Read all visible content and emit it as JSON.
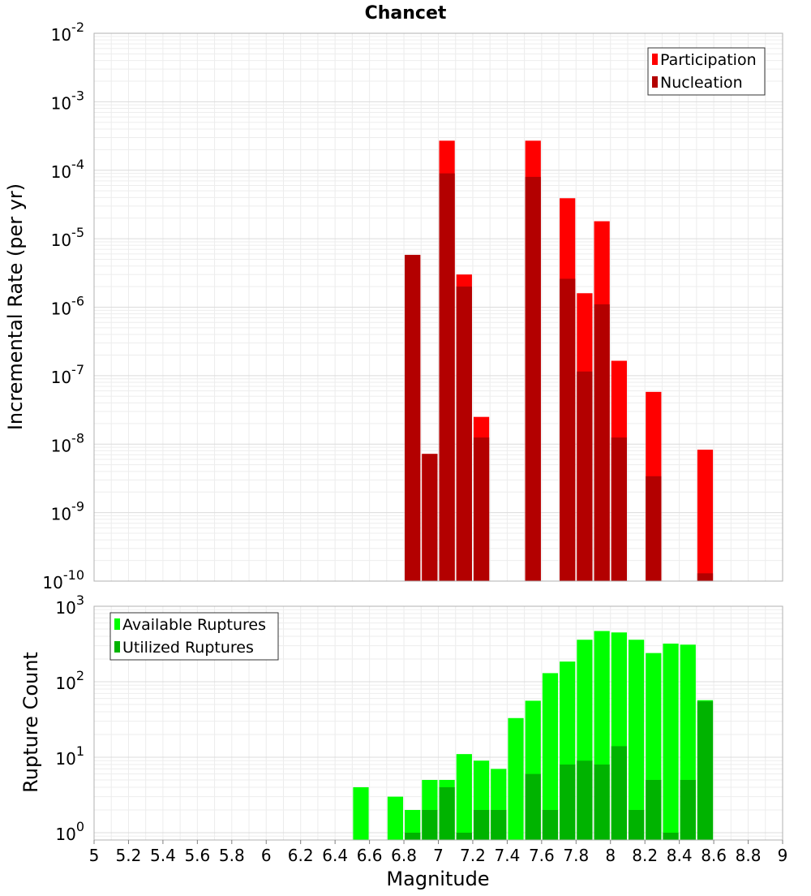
{
  "chart_data": [
    {
      "type": "bar",
      "title": "Chancet",
      "xlabel": "",
      "ylabel": "Incremental Rate (per yr)",
      "y_scale": "log",
      "ylim": [
        1e-10,
        0.01
      ],
      "xlim": [
        5,
        9
      ],
      "bar_width": 0.1,
      "grid": true,
      "legend_position": "top-right",
      "y_ticks": [
        {
          "base": "10",
          "exp": "-10",
          "value": 1e-10
        },
        {
          "base": "10",
          "exp": "-9",
          "value": 1e-09
        },
        {
          "base": "10",
          "exp": "-8",
          "value": 1e-08
        },
        {
          "base": "10",
          "exp": "-7",
          "value": 1e-07
        },
        {
          "base": "10",
          "exp": "-6",
          "value": 1e-06
        },
        {
          "base": "10",
          "exp": "-5",
          "value": 1e-05
        },
        {
          "base": "10",
          "exp": "-4",
          "value": 0.0001
        },
        {
          "base": "10",
          "exp": "-3",
          "value": 0.001
        },
        {
          "base": "10",
          "exp": "-2",
          "value": 0.01
        }
      ],
      "series": [
        {
          "name": "Participation",
          "color": "#ff0000",
          "points": [
            {
              "x": 6.85,
              "y": 5.8e-06
            },
            {
              "x": 6.95,
              "y": 7.2e-09
            },
            {
              "x": 7.05,
              "y": 0.00027
            },
            {
              "x": 7.15,
              "y": 3e-06
            },
            {
              "x": 7.25,
              "y": 2.5e-08
            },
            {
              "x": 7.55,
              "y": 0.00027
            },
            {
              "x": 7.75,
              "y": 3.9e-05
            },
            {
              "x": 7.85,
              "y": 1.6e-06
            },
            {
              "x": 7.95,
              "y": 1.8e-05
            },
            {
              "x": 8.05,
              "y": 1.65e-07
            },
            {
              "x": 8.25,
              "y": 5.8e-08
            },
            {
              "x": 8.55,
              "y": 8.3e-09
            }
          ]
        },
        {
          "name": "Nucleation",
          "color": "#b30000",
          "points": [
            {
              "x": 6.85,
              "y": 5.8e-06
            },
            {
              "x": 6.95,
              "y": 7.2e-09
            },
            {
              "x": 7.05,
              "y": 9e-05
            },
            {
              "x": 7.15,
              "y": 2e-06
            },
            {
              "x": 7.25,
              "y": 1.25e-08
            },
            {
              "x": 7.55,
              "y": 8e-05
            },
            {
              "x": 7.75,
              "y": 2.6e-06
            },
            {
              "x": 7.85,
              "y": 1.15e-07
            },
            {
              "x": 7.95,
              "y": 1.1e-06
            },
            {
              "x": 8.05,
              "y": 1.25e-08
            },
            {
              "x": 8.25,
              "y": 3.4e-09
            },
            {
              "x": 8.55,
              "y": 1.3e-10
            }
          ]
        }
      ]
    },
    {
      "type": "bar",
      "title": "",
      "xlabel": "Magnitude",
      "ylabel": "Rupture Count",
      "y_scale": "log",
      "ylim": [
        0.8,
        1000
      ],
      "xlim": [
        5,
        9
      ],
      "bar_width": 0.1,
      "grid": true,
      "legend_position": "top-left",
      "x_ticks": [
        "5",
        "5.2",
        "5.4",
        "5.6",
        "5.8",
        "6",
        "6.2",
        "6.4",
        "6.6",
        "6.8",
        "7",
        "7.2",
        "7.4",
        "7.6",
        "7.8",
        "8",
        "8.2",
        "8.4",
        "8.6",
        "8.8",
        "9"
      ],
      "y_ticks": [
        {
          "base": "10",
          "exp": "0",
          "value": 1
        },
        {
          "base": "10",
          "exp": "1",
          "value": 10
        },
        {
          "base": "10",
          "exp": "2",
          "value": 100
        },
        {
          "base": "10",
          "exp": "3",
          "value": 1000
        }
      ],
      "series": [
        {
          "name": "Available Ruptures",
          "color": "#00ff00",
          "points": [
            {
              "x": 6.55,
              "y": 4
            },
            {
              "x": 6.75,
              "y": 3
            },
            {
              "x": 6.85,
              "y": 2
            },
            {
              "x": 6.95,
              "y": 5
            },
            {
              "x": 7.05,
              "y": 5
            },
            {
              "x": 7.15,
              "y": 11
            },
            {
              "x": 7.25,
              "y": 9
            },
            {
              "x": 7.35,
              "y": 7
            },
            {
              "x": 7.45,
              "y": 33
            },
            {
              "x": 7.55,
              "y": 56
            },
            {
              "x": 7.65,
              "y": 130
            },
            {
              "x": 7.75,
              "y": 185
            },
            {
              "x": 7.85,
              "y": 360
            },
            {
              "x": 7.95,
              "y": 470
            },
            {
              "x": 8.05,
              "y": 450
            },
            {
              "x": 8.15,
              "y": 360
            },
            {
              "x": 8.25,
              "y": 240
            },
            {
              "x": 8.35,
              "y": 320
            },
            {
              "x": 8.45,
              "y": 310
            },
            {
              "x": 8.55,
              "y": 57
            }
          ]
        },
        {
          "name": "Utilized Ruptures",
          "color": "#00b300",
          "points": [
            {
              "x": 6.85,
              "y": 1
            },
            {
              "x": 6.95,
              "y": 2
            },
            {
              "x": 7.05,
              "y": 4
            },
            {
              "x": 7.15,
              "y": 1
            },
            {
              "x": 7.25,
              "y": 2
            },
            {
              "x": 7.35,
              "y": 2
            },
            {
              "x": 7.55,
              "y": 6
            },
            {
              "x": 7.65,
              "y": 2
            },
            {
              "x": 7.75,
              "y": 8
            },
            {
              "x": 7.85,
              "y": 9
            },
            {
              "x": 7.95,
              "y": 8
            },
            {
              "x": 8.05,
              "y": 14
            },
            {
              "x": 8.15,
              "y": 2
            },
            {
              "x": 8.25,
              "y": 5
            },
            {
              "x": 8.35,
              "y": 1
            },
            {
              "x": 8.45,
              "y": 5
            },
            {
              "x": 8.55,
              "y": 55
            }
          ]
        }
      ]
    }
  ]
}
